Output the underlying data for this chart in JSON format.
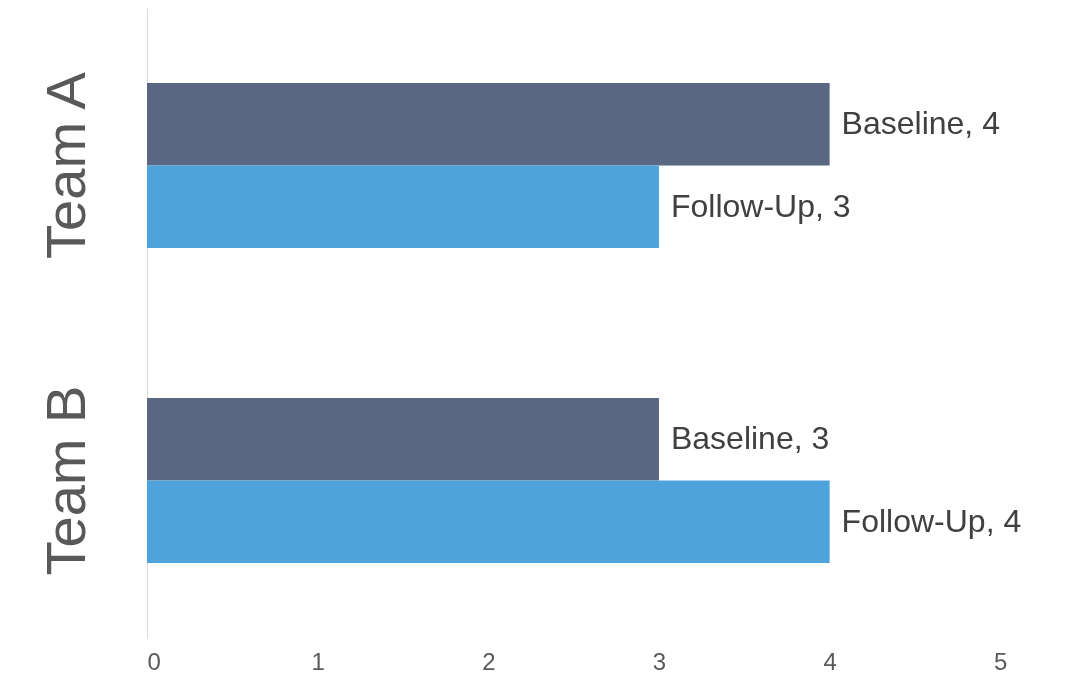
{
  "chart_data": {
    "type": "bar",
    "orientation": "horizontal",
    "categories": [
      "Team A",
      "Team B"
    ],
    "series": [
      {
        "color": "#5a6782",
        "values": [
          4,
          3
        ],
        "value_labels": [
          "Baseline, 4",
          "Baseline, 3"
        ]
      },
      {
        "color": "#4fa3db",
        "values": [
          3,
          4
        ],
        "value_labels": [
          "Follow-Up, 3",
          "Follow-Up, 4"
        ]
      }
    ],
    "xlim": [
      0,
      5.35
    ],
    "xticks": [
      0,
      1,
      2,
      3,
      4,
      5
    ],
    "grid": false
  }
}
